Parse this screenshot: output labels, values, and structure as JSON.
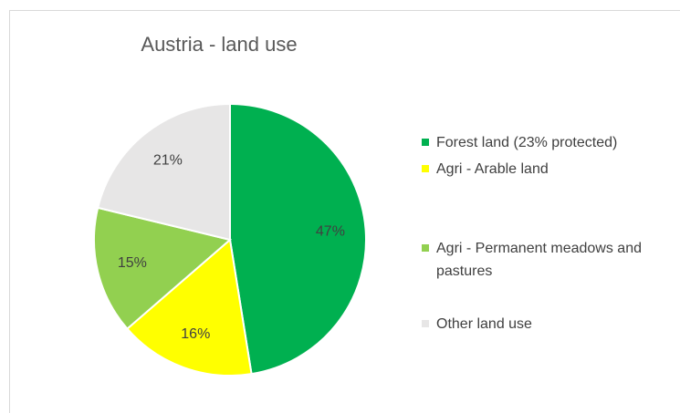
{
  "chart_data": {
    "type": "pie",
    "title": "Austria - land use",
    "categories": [
      "Forest land (23% protected)",
      "Agri - Arable land",
      "Agri - Permanent meadows and pastures",
      "Other land use"
    ],
    "values": [
      47,
      16,
      15,
      21
    ],
    "value_labels": [
      "47%",
      "16%",
      "15%",
      "21%"
    ],
    "colors": [
      "#00b050",
      "#ffff00",
      "#92d050",
      "#e7e6e6"
    ],
    "legend": "right"
  }
}
